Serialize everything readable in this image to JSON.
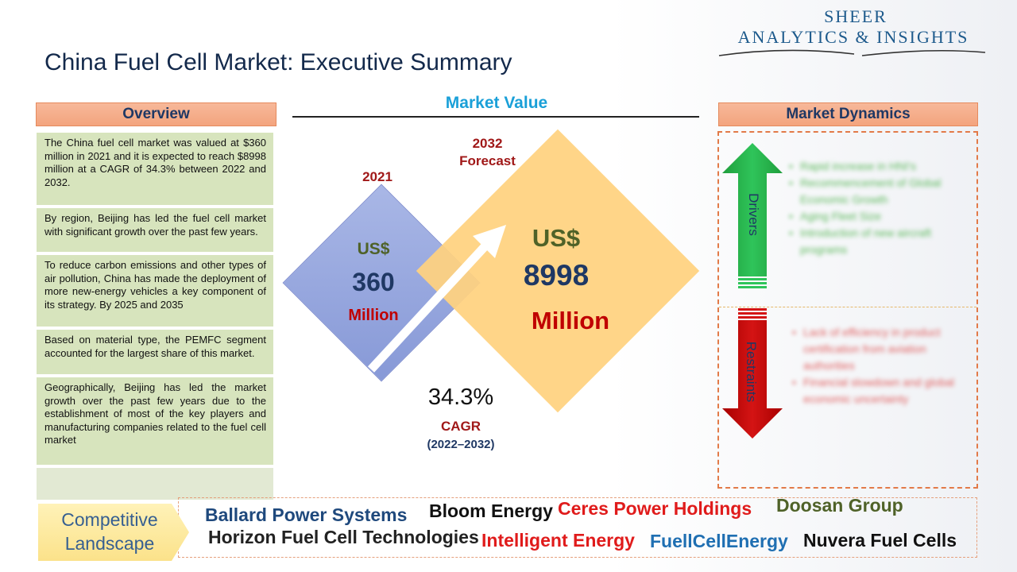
{
  "logo": {
    "line1": "SHEER",
    "line2": "ANALYTICS & INSIGHTS"
  },
  "title": "China Fuel Cell Market: Executive Summary",
  "overview": {
    "header": "Overview",
    "items": [
      "The China fuel cell market was valued at $360 million in 2021 and it is expected to reach $8998 million at a CAGR of 34.3% between 2022 and 2032.",
      "By region, Beijing has led the fuel cell market with significant growth over the past few years.",
      "To reduce carbon emissions and other types of air pollution, China has made the deployment of more new-energy vehicles a key component of its strategy. By 2025 and 2035",
      "Based on material type, the PEMFC segment accounted for the largest share of this market.",
      "Geographically, Beijing has led the market growth over the past few years due to the establishment of most of the key players and manufacturing companies related to the fuel cell market"
    ]
  },
  "market_value": {
    "title": "Market Value",
    "start": {
      "year": "2021",
      "currency": "US$",
      "value": "360",
      "unit": "Million"
    },
    "forecast": {
      "year": "2032",
      "label": "Forecast",
      "currency": "US$",
      "value": "8998",
      "unit": "Million"
    },
    "cagr": {
      "value": "34.3%",
      "label": "CAGR",
      "period": "(2022–2032)"
    }
  },
  "dynamics": {
    "header": "Market Dynamics",
    "drivers_label": "Drivers",
    "restraints_label": "Restraints",
    "drivers": [
      "Rapid increase in HNI's",
      "Recommencement of Global Economic Growth",
      "Aging Fleet Size",
      "Introduction of new aircraft programs"
    ],
    "restraints": [
      "Lack of efficiency in product certification from aviation authorities",
      "Financial slowdown and global economic uncertainty"
    ],
    "colors": {
      "drivers": "#2db34a",
      "restraints": "#c00000"
    }
  },
  "competitive": {
    "label_line1": "Competitive",
    "label_line2": "Landscape",
    "companies": [
      "Ballard Power Systems",
      "Bloom Energy",
      "Ceres Power Holdings",
      "Doosan Group",
      "Horizon Fuel Cell Technologies",
      "Intelligent Energy",
      "FuellCellEnergy",
      "Nuvera Fuel Cells"
    ]
  }
}
